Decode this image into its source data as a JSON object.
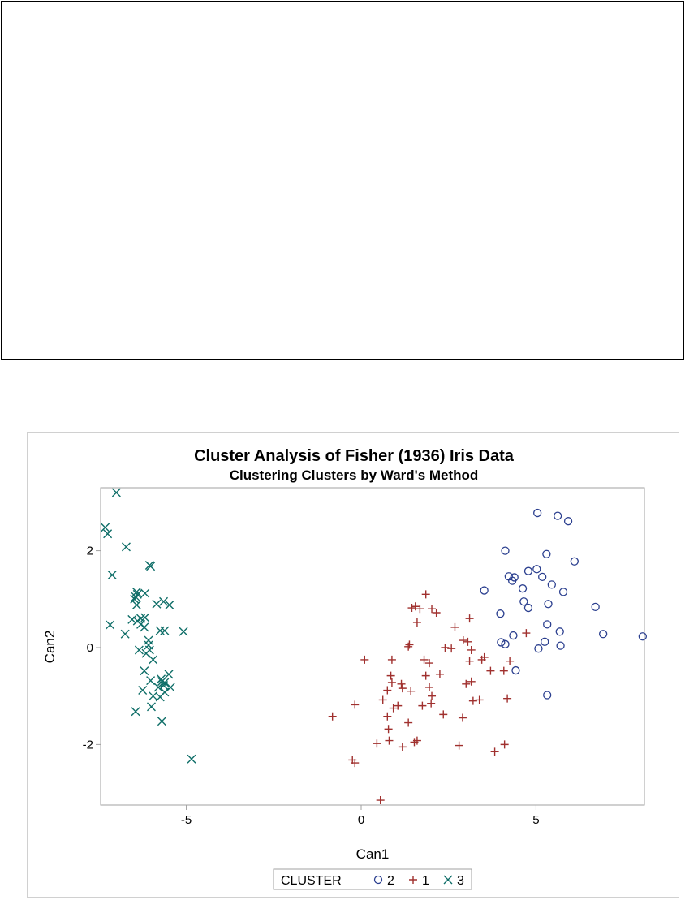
{
  "chart_data": {
    "type": "scatter",
    "title": "Cluster Analysis of Fisher (1936) Iris Data",
    "subtitle": "Clustering Clusters by Ward's Method",
    "xlabel": "Can1",
    "ylabel": "Can2",
    "xlim": [
      -7.45,
      8.1
    ],
    "ylim": [
      -3.25,
      3.3
    ],
    "xticks": [
      "-5",
      "0",
      "5"
    ],
    "yticks": [
      "-2",
      "0",
      "2"
    ],
    "xtick_values": [
      -5,
      0,
      5
    ],
    "ytick_values": [
      -2,
      0,
      2
    ],
    "legend": {
      "title": "CLUSTER",
      "placement": "bottom",
      "entries": [
        "2",
        "1",
        "3"
      ]
    },
    "colors": {
      "cluster_2": "#2b3f8f",
      "cluster_1": "#a0302e",
      "cluster_3": "#0f6e68"
    },
    "series": [
      {
        "name": "2",
        "marker": "circle",
        "color": "#2b3f8f",
        "points": [
          [
            5.04,
            2.78
          ],
          [
            5.62,
            2.72
          ],
          [
            5.92,
            2.61
          ],
          [
            4.12,
            2.0
          ],
          [
            5.3,
            1.93
          ],
          [
            6.1,
            1.78
          ],
          [
            4.22,
            1.47
          ],
          [
            4.38,
            1.45
          ],
          [
            4.32,
            1.38
          ],
          [
            5.02,
            1.62
          ],
          [
            4.78,
            1.58
          ],
          [
            5.18,
            1.46
          ],
          [
            5.45,
            1.3
          ],
          [
            3.52,
            1.18
          ],
          [
            4.62,
            1.22
          ],
          [
            5.78,
            1.15
          ],
          [
            4.65,
            0.95
          ],
          [
            5.35,
            0.9
          ],
          [
            4.78,
            0.82
          ],
          [
            6.7,
            0.84
          ],
          [
            3.98,
            0.7
          ],
          [
            5.68,
            0.33
          ],
          [
            5.32,
            0.48
          ],
          [
            6.92,
            0.28
          ],
          [
            4.35,
            0.25
          ],
          [
            8.05,
            0.23
          ],
          [
            5.25,
            0.12
          ],
          [
            4.0,
            0.11
          ],
          [
            4.12,
            0.07
          ],
          [
            5.7,
            0.04
          ],
          [
            5.07,
            -0.02
          ],
          [
            4.42,
            -0.47
          ],
          [
            5.32,
            -0.98
          ]
        ]
      },
      {
        "name": "1",
        "marker": "plus",
        "color": "#a0302e",
        "points": [
          [
            1.85,
            1.1
          ],
          [
            1.55,
            0.85
          ],
          [
            1.68,
            0.8
          ],
          [
            1.45,
            0.82
          ],
          [
            2.02,
            0.8
          ],
          [
            2.15,
            0.72
          ],
          [
            3.1,
            0.6
          ],
          [
            1.6,
            0.52
          ],
          [
            2.68,
            0.42
          ],
          [
            4.72,
            0.3
          ],
          [
            0.1,
            -0.25
          ],
          [
            0.88,
            -0.25
          ],
          [
            1.35,
            0.02
          ],
          [
            1.38,
            0.06
          ],
          [
            1.8,
            -0.25
          ],
          [
            1.95,
            -0.32
          ],
          [
            2.4,
            0.0
          ],
          [
            2.58,
            -0.02
          ],
          [
            3.15,
            -0.05
          ],
          [
            2.92,
            0.15
          ],
          [
            3.05,
            0.12
          ],
          [
            3.45,
            -0.25
          ],
          [
            3.52,
            -0.2
          ],
          [
            4.25,
            -0.28
          ],
          [
            4.08,
            -0.48
          ],
          [
            3.7,
            -0.48
          ],
          [
            1.85,
            -0.58
          ],
          [
            0.85,
            -0.58
          ],
          [
            2.25,
            -0.55
          ],
          [
            0.88,
            -0.72
          ],
          [
            1.15,
            -0.75
          ],
          [
            1.18,
            -0.84
          ],
          [
            1.42,
            -0.9
          ],
          [
            0.75,
            -0.88
          ],
          [
            3.15,
            -0.7
          ],
          [
            3.0,
            -0.75
          ],
          [
            3.38,
            -1.08
          ],
          [
            3.2,
            -1.1
          ],
          [
            4.18,
            -1.05
          ],
          [
            2.02,
            -1.0
          ],
          [
            0.92,
            -1.25
          ],
          [
            1.05,
            -1.2
          ],
          [
            1.75,
            -1.2
          ],
          [
            2.0,
            -1.15
          ],
          [
            -0.18,
            -1.18
          ],
          [
            -0.82,
            -1.42
          ],
          [
            0.75,
            -1.42
          ],
          [
            1.35,
            -1.55
          ],
          [
            2.35,
            -1.38
          ],
          [
            2.9,
            -1.45
          ],
          [
            0.78,
            -1.68
          ],
          [
            0.45,
            -1.98
          ],
          [
            0.8,
            -1.92
          ],
          [
            1.6,
            -1.92
          ],
          [
            1.18,
            -2.05
          ],
          [
            2.8,
            -2.02
          ],
          [
            4.1,
            -2.0
          ],
          [
            3.82,
            -2.15
          ],
          [
            -0.25,
            -2.32
          ],
          [
            -0.18,
            -2.38
          ],
          [
            0.55,
            -3.15
          ],
          [
            1.52,
            -1.95
          ],
          [
            1.95,
            -0.82
          ],
          [
            0.62,
            -1.08
          ],
          [
            3.1,
            -0.28
          ]
        ]
      },
      {
        "name": "3",
        "marker": "x",
        "color": "#0f6e68",
        "points": [
          [
            -7.0,
            3.2
          ],
          [
            -7.32,
            2.48
          ],
          [
            -7.25,
            2.35
          ],
          [
            -6.72,
            2.08
          ],
          [
            -6.05,
            1.7
          ],
          [
            -6.02,
            1.68
          ],
          [
            -7.12,
            1.5
          ],
          [
            -6.42,
            1.15
          ],
          [
            -6.18,
            1.12
          ],
          [
            -6.45,
            1.05
          ],
          [
            -6.48,
            1.0
          ],
          [
            -5.65,
            0.95
          ],
          [
            -5.48,
            0.88
          ],
          [
            -5.85,
            0.9
          ],
          [
            -6.42,
            0.88
          ],
          [
            -6.18,
            0.62
          ],
          [
            -6.4,
            0.55
          ],
          [
            -6.55,
            0.58
          ],
          [
            -6.3,
            0.48
          ],
          [
            -6.2,
            0.42
          ],
          [
            -7.18,
            0.47
          ],
          [
            -5.75,
            0.35
          ],
          [
            -5.62,
            0.35
          ],
          [
            -5.08,
            0.33
          ],
          [
            -6.75,
            0.28
          ],
          [
            -6.08,
            0.15
          ],
          [
            -6.08,
            0.05
          ],
          [
            -6.35,
            -0.05
          ],
          [
            -6.15,
            -0.12
          ],
          [
            -5.95,
            -0.25
          ],
          [
            -6.2,
            -0.48
          ],
          [
            -5.72,
            -0.65
          ],
          [
            -5.5,
            -0.55
          ],
          [
            -6.02,
            -0.68
          ],
          [
            -5.62,
            -0.72
          ],
          [
            -5.8,
            -0.82
          ],
          [
            -5.45,
            -0.82
          ],
          [
            -6.25,
            -0.88
          ],
          [
            -5.62,
            -0.92
          ],
          [
            -5.95,
            -1.0
          ],
          [
            -5.75,
            -1.02
          ],
          [
            -6.0,
            -1.22
          ],
          [
            -6.45,
            -1.32
          ],
          [
            -5.7,
            -1.52
          ],
          [
            -4.85,
            -2.3
          ],
          [
            -5.7,
            -0.7
          ],
          [
            -6.3,
            0.6
          ],
          [
            -6.05,
            -0.05
          ],
          [
            -5.65,
            -0.78
          ],
          [
            -6.4,
            1.1
          ]
        ]
      }
    ]
  }
}
